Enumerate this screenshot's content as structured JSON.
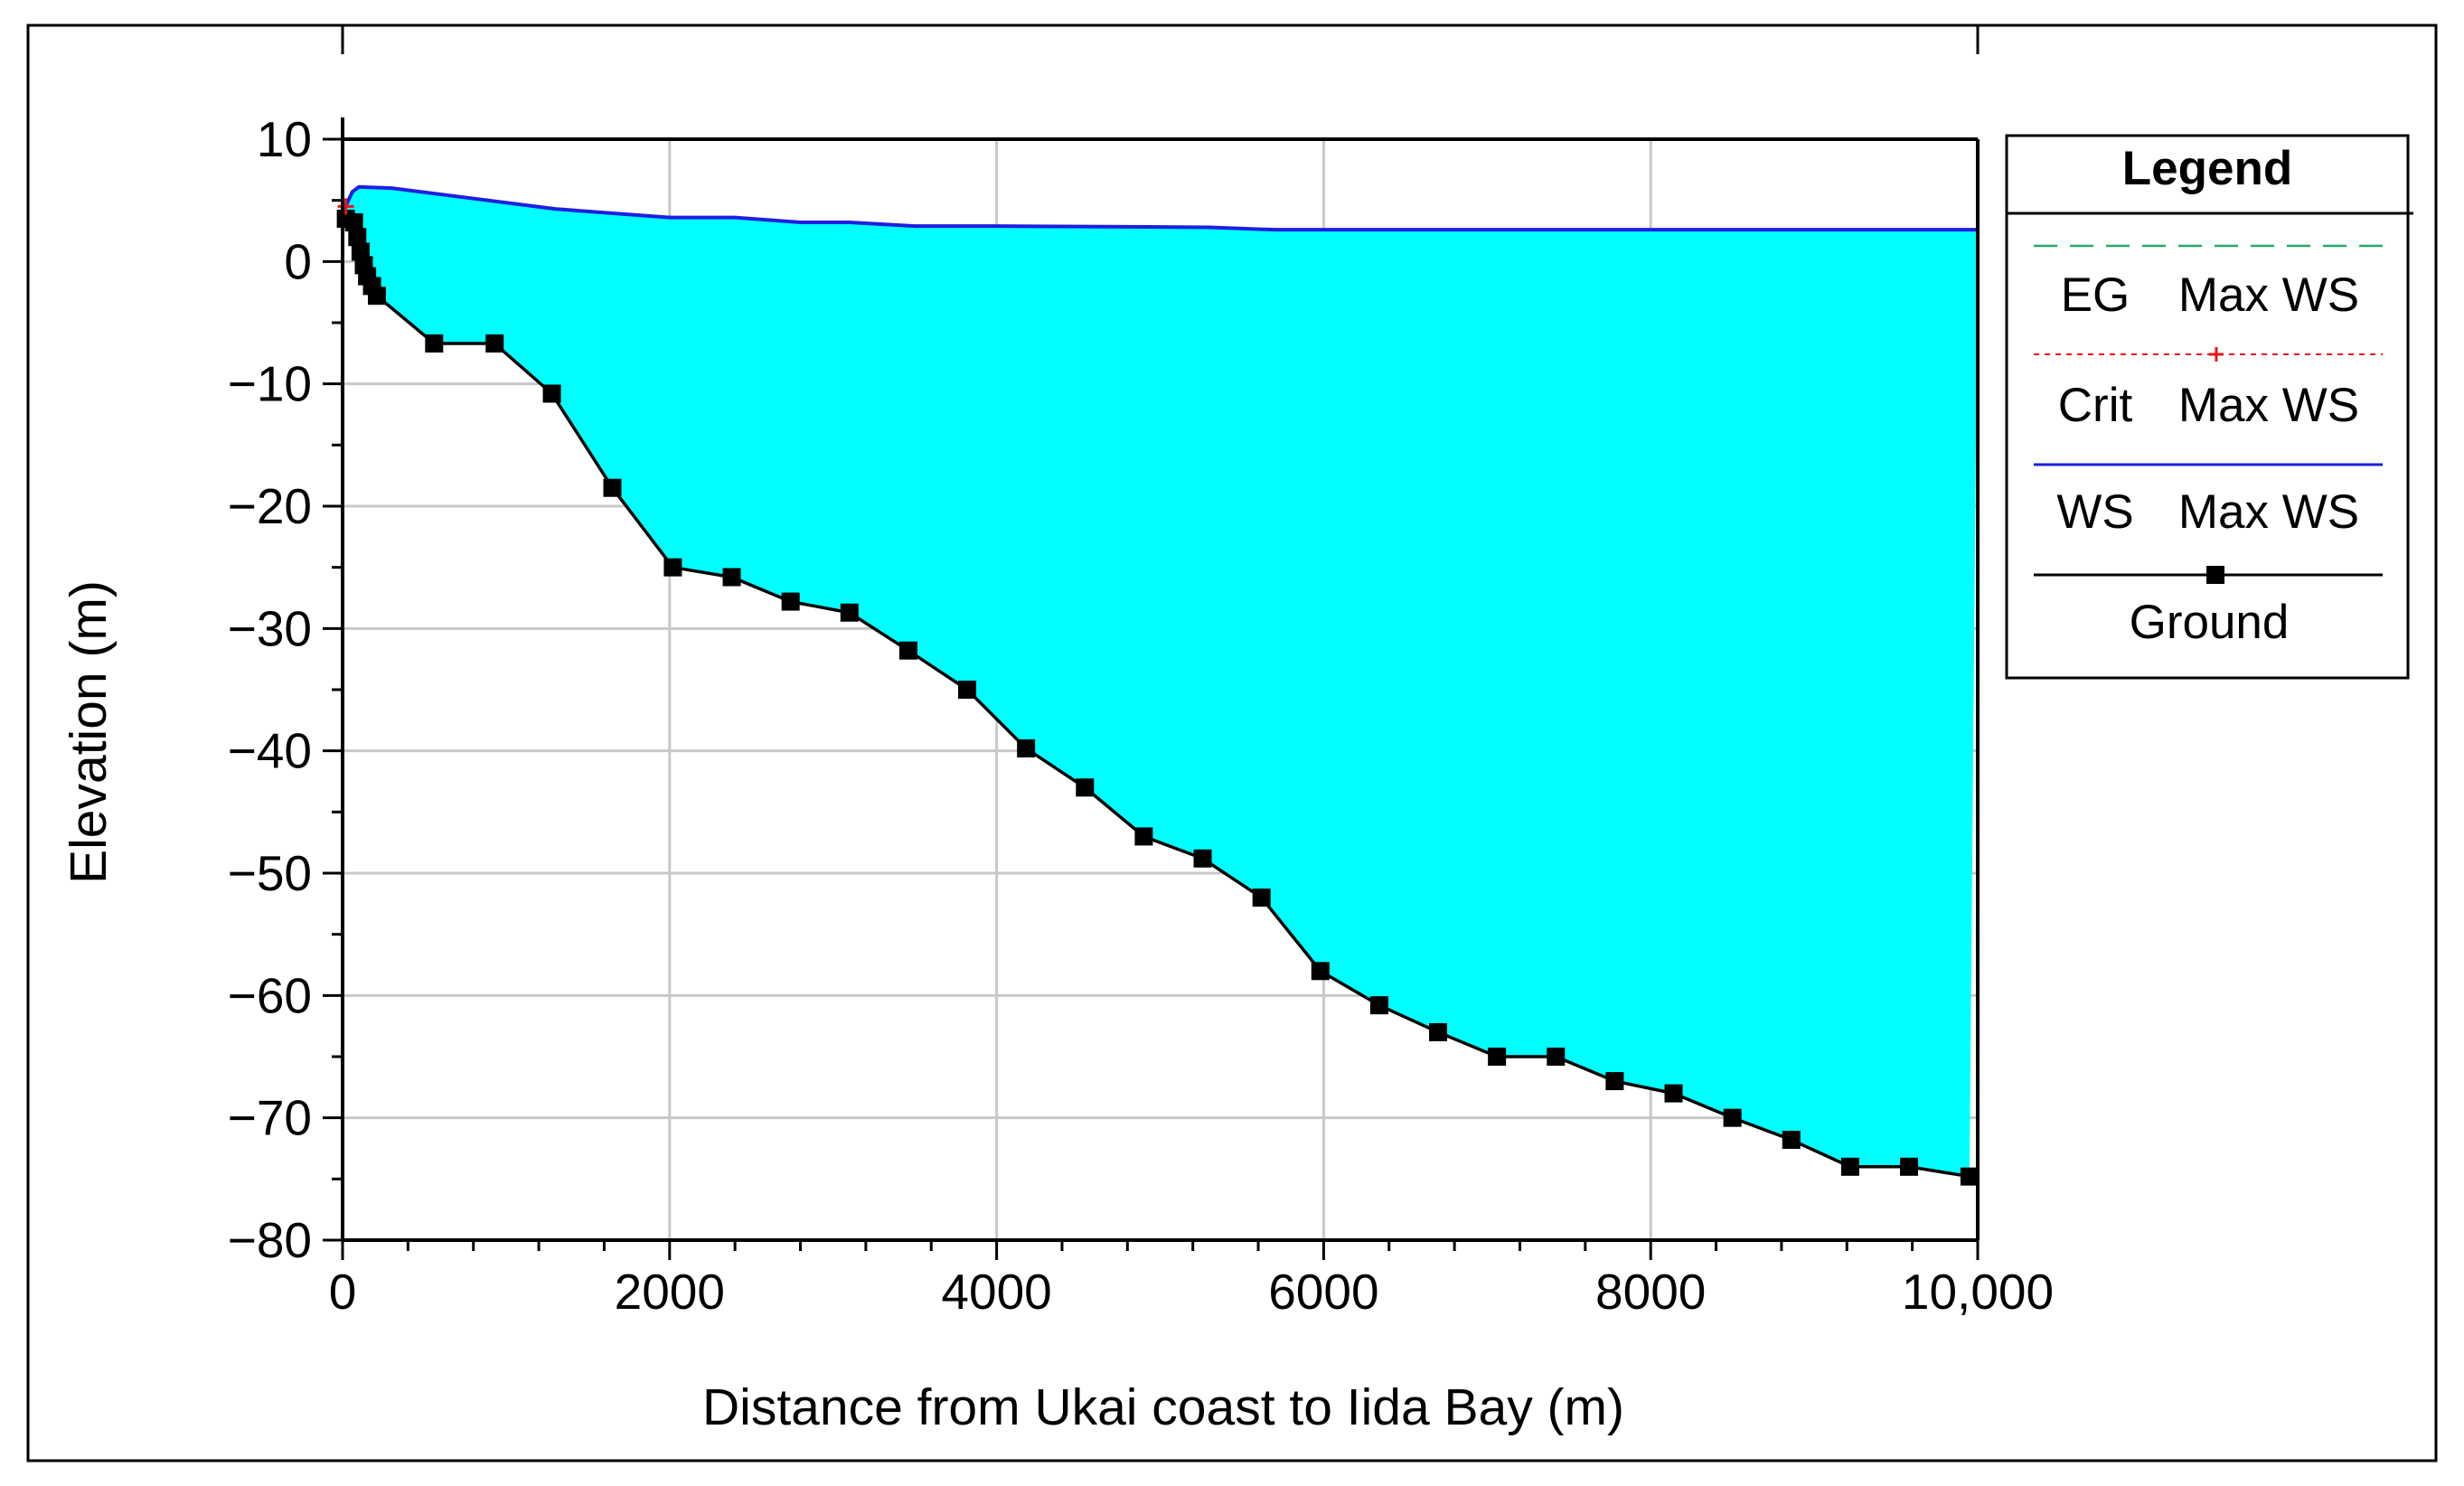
{
  "chart_data": {
    "type": "area",
    "xlabel": "Distance from Ukai coast to Iida Bay (m)",
    "ylabel": "Elevation (m)",
    "xlim": [
      0,
      10000
    ],
    "ylim": [
      -80,
      10
    ],
    "x_ticks": [
      0,
      2000,
      4000,
      6000,
      8000,
      10000
    ],
    "x_tick_labels": [
      "0",
      "2000",
      "4000",
      "6000",
      "8000",
      "10,000"
    ],
    "y_ticks": [
      10,
      0,
      -10,
      -20,
      -30,
      -40,
      -50,
      -60,
      -70,
      -80
    ],
    "y_tick_labels": [
      "10",
      "0",
      "−10",
      "−20",
      "−30",
      "−40",
      "−50",
      "−60",
      "−70",
      "−80"
    ],
    "grid": true,
    "legend": {
      "title": "Legend",
      "placement": "right",
      "entries": [
        {
          "label_a": "EG",
          "label_b": "Max WS",
          "style": "dash",
          "color": "#22AA66"
        },
        {
          "label_a": "Crit",
          "label_b": "Max WS",
          "style": "dot",
          "color": "#E8141C"
        },
        {
          "label_a": "WS",
          "label_b": "Max WS",
          "style": "solid",
          "color": "#1F1FE0"
        },
        {
          "label_a": "Ground",
          "label_b": "",
          "style": "solid-square",
          "color": "#000000"
        }
      ]
    },
    "series": [
      {
        "name": "WS Max WS",
        "color": "#1F1FE0",
        "fill": "#00FFFF",
        "x": [
          0,
          60,
          100,
          300,
          1300,
          2000,
          2400,
          2800,
          3100,
          3500,
          4000,
          5300,
          5700,
          8000,
          10000
        ],
        "y": [
          4,
          5.7,
          6.1,
          6.0,
          4.3,
          3.6,
          3.6,
          3.2,
          3.2,
          2.9,
          2.9,
          2.8,
          2.6,
          2.6,
          2.6
        ]
      },
      {
        "name": "Ground",
        "color": "#000000",
        "x": [
          20,
          70,
          90,
          110,
          130,
          150,
          180,
          210,
          560,
          930,
          1280,
          1650,
          2020,
          2380,
          2740,
          3100,
          3460,
          3820,
          4180,
          4540,
          4900,
          5260,
          5620,
          5980,
          6340,
          6700,
          7060,
          7420,
          7780,
          8140,
          8500,
          8860,
          9220,
          9580,
          9950
        ],
        "y": [
          3.5,
          3.2,
          2.0,
          0.8,
          -0.3,
          -1.2,
          -2.0,
          -2.8,
          -6.7,
          -6.7,
          -10.8,
          -18.5,
          -25.0,
          -25.8,
          -27.8,
          -28.7,
          -31.8,
          -35.0,
          -39.8,
          -43.0,
          -47.0,
          -48.8,
          -52.0,
          -58.0,
          -60.8,
          -63.0,
          -65.0,
          -65.0,
          -67.0,
          -68.0,
          -70.0,
          -71.8,
          -74.0,
          -74.0,
          -74.8
        ]
      },
      {
        "name": "Crit Max WS",
        "color": "#E8141C",
        "x": [
          20
        ],
        "y": [
          4.5
        ]
      }
    ]
  }
}
